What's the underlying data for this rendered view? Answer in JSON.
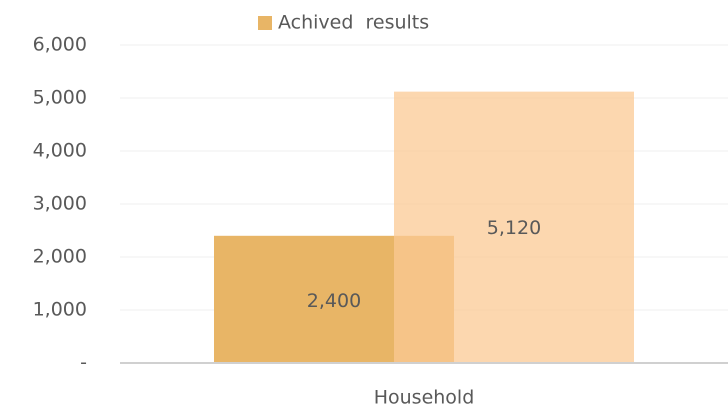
{
  "chart_data": {
    "type": "bar",
    "categories": [
      "Household"
    ],
    "series": [
      {
        "name": "Achived  results",
        "color": "#e8b566",
        "values": [
          2400
        ],
        "value_labels": [
          "2,400"
        ]
      },
      {
        "color": "#fbc994",
        "values": [
          5120
        ],
        "value_labels": [
          "5,120"
        ]
      }
    ],
    "ylim": [
      0,
      6000
    ],
    "yticks": [
      {
        "value": 0,
        "label": "-"
      },
      {
        "value": 1000,
        "label": "1,000"
      },
      {
        "value": 2000,
        "label": "2,000"
      },
      {
        "value": 3000,
        "label": "3,000"
      },
      {
        "value": 4000,
        "label": "4,000"
      },
      {
        "value": 5000,
        "label": "5,000"
      },
      {
        "value": 6000,
        "label": "6,000"
      }
    ],
    "grid": true,
    "legend": "top"
  }
}
